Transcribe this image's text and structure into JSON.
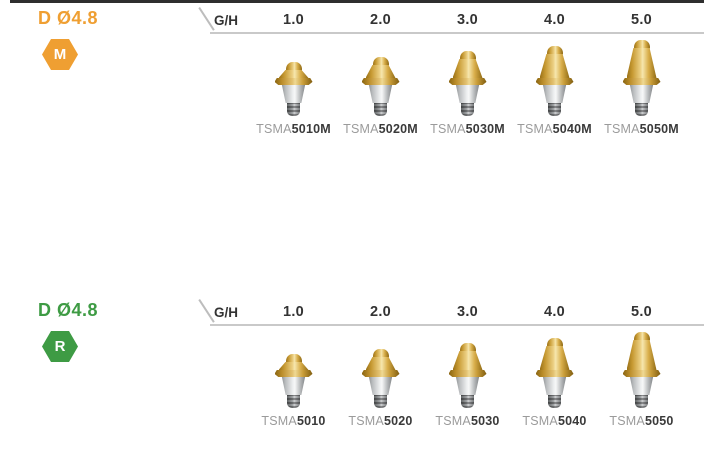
{
  "colors": {
    "accent_orange": "#EF9F32",
    "accent_green": "#3E9B44",
    "gold": "#D9AE4A",
    "silver": "#B9BCBE",
    "rule_gray": "#C9C9C9",
    "label_prefix_gray": "#9B9B9B",
    "text_dark": "#3A3A3A",
    "top_bar": "#2E2E2E"
  },
  "sections": [
    {
      "diameter_label": "D Ø4.8",
      "badge_letter": "M",
      "accent_color": "#EF9F32",
      "gh_label": "G/H",
      "gh_values": [
        "1.0",
        "2.0",
        "3.0",
        "4.0",
        "5.0"
      ],
      "products": [
        {
          "prefix": "TSMA",
          "code": "5010M",
          "gh": "1.0"
        },
        {
          "prefix": "TSMA",
          "code": "5020M",
          "gh": "2.0"
        },
        {
          "prefix": "TSMA",
          "code": "5030M",
          "gh": "3.0"
        },
        {
          "prefix": "TSMA",
          "code": "5040M",
          "gh": "4.0"
        },
        {
          "prefix": "TSMA",
          "code": "5050M",
          "gh": "5.0"
        }
      ]
    },
    {
      "diameter_label": "D Ø4.8",
      "badge_letter": "R",
      "accent_color": "#3E9B44",
      "gh_label": "G/H",
      "gh_values": [
        "1.0",
        "2.0",
        "3.0",
        "4.0",
        "5.0"
      ],
      "products": [
        {
          "prefix": "TSMA",
          "code": "5010",
          "gh": "1.0"
        },
        {
          "prefix": "TSMA",
          "code": "5020",
          "gh": "2.0"
        },
        {
          "prefix": "TSMA",
          "code": "5030",
          "gh": "3.0"
        },
        {
          "prefix": "TSMA",
          "code": "5040",
          "gh": "4.0"
        },
        {
          "prefix": "TSMA",
          "code": "5050",
          "gh": "5.0"
        }
      ]
    }
  ]
}
